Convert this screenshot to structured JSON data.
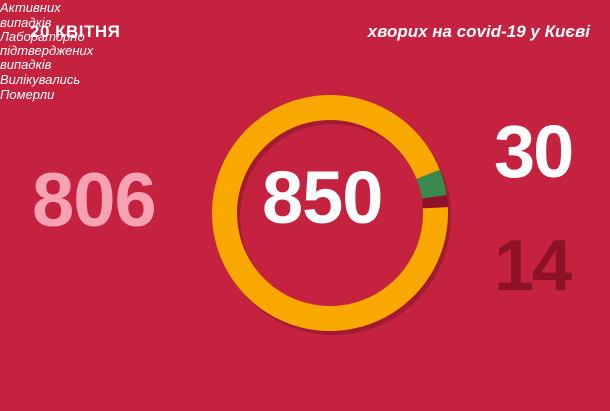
{
  "header": {
    "date": "20 КВІТНЯ",
    "headline": "хворих на covid-19 у Києві"
  },
  "stats": {
    "active": {
      "value": "806",
      "label": [
        "Активних",
        "випадків"
      ]
    },
    "total": {
      "value": "850",
      "label": [
        "Лабораторно",
        "підтверджених",
        "випадків"
      ]
    },
    "recovered": {
      "value": "30",
      "label": "Вилікувались"
    },
    "died": {
      "value": "14",
      "label": "Померли"
    }
  },
  "chart_data": {
    "type": "pie",
    "categories": [
      "Активних випадків",
      "Вилікувались",
      "Померли"
    ],
    "values": [
      806,
      30,
      14
    ],
    "colors": [
      "#f9a800",
      "#3a8a4e",
      "#8e1227"
    ],
    "shadow_color": "#a31a34"
  }
}
